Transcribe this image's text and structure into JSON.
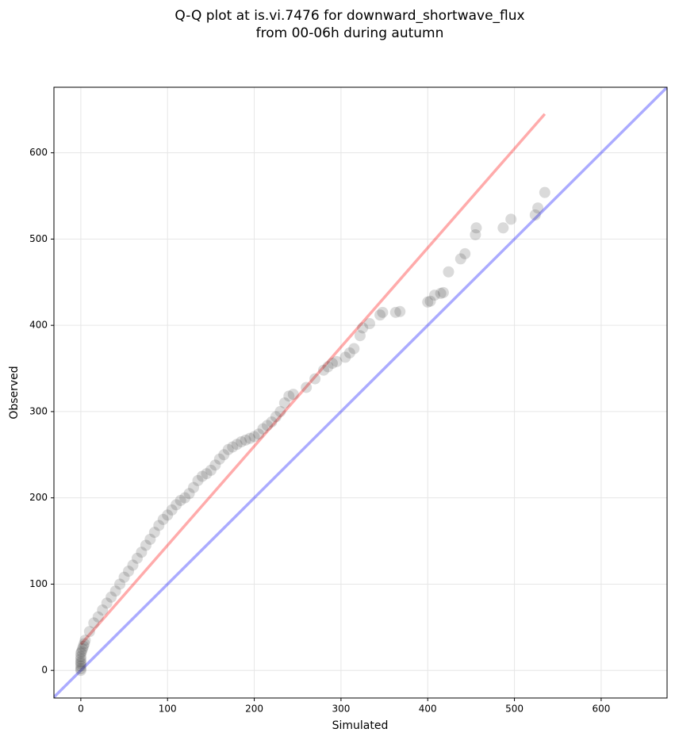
{
  "chart_data": {
    "type": "scatter",
    "title": [
      "Q-Q plot at is.vi.7476 for downward_shortwave_flux",
      "from 00-06h during autumn"
    ],
    "x_label": "Simulated",
    "y_label": "Observed",
    "xlim": [
      -31,
      676
    ],
    "ylim": [
      -32,
      676
    ],
    "xticks": [
      0,
      100,
      200,
      300,
      400,
      500,
      600
    ],
    "yticks": [
      0,
      100,
      200,
      300,
      400,
      500,
      600
    ],
    "grid": true,
    "series": [
      {
        "color": "#333333",
        "x": [
          0,
          0,
          0,
          0,
          0,
          0,
          0,
          0,
          1,
          2,
          3,
          4,
          5,
          10,
          15,
          20,
          25,
          30,
          35,
          40,
          45,
          50,
          55,
          60,
          65,
          70,
          75,
          80,
          85,
          90,
          95,
          100,
          105,
          110,
          115,
          120,
          125,
          130,
          135,
          140,
          145,
          150,
          155,
          160,
          165,
          170,
          175,
          180,
          185,
          190,
          195,
          200,
          205,
          210,
          215,
          220,
          225,
          230,
          235,
          240,
          245,
          260,
          270,
          280,
          285,
          290,
          295,
          305,
          310,
          315,
          322,
          325,
          333,
          345,
          348,
          363,
          368,
          400,
          403,
          408,
          415,
          418,
          424,
          438,
          443,
          455,
          456,
          487,
          496,
          524,
          527,
          535
        ],
        "values": [
          0,
          2,
          5,
          8,
          10,
          13,
          16,
          20,
          22,
          25,
          28,
          31,
          35,
          45,
          55,
          62,
          70,
          78,
          85,
          92,
          100,
          108,
          115,
          122,
          130,
          137,
          145,
          152,
          160,
          168,
          175,
          180,
          186,
          192,
          197,
          200,
          205,
          212,
          220,
          225,
          228,
          232,
          238,
          245,
          250,
          256,
          259,
          262,
          265,
          267,
          269,
          271,
          274,
          280,
          284,
          288,
          294,
          300,
          310,
          318,
          320,
          328,
          338,
          348,
          352,
          356,
          358,
          363,
          368,
          373,
          388,
          397,
          402,
          412,
          415,
          415,
          416,
          427,
          428,
          435,
          437,
          438,
          462,
          477,
          483,
          505,
          513,
          513,
          523,
          528,
          536,
          554
        ]
      }
    ],
    "lines": [
      {
        "color": "#ff0000",
        "x": [
          0,
          535
        ],
        "values": [
          30,
          645
        ]
      },
      {
        "color": "#0000ff",
        "x": [
          -31,
          676
        ],
        "values": [
          -31,
          676
        ]
      }
    ]
  }
}
